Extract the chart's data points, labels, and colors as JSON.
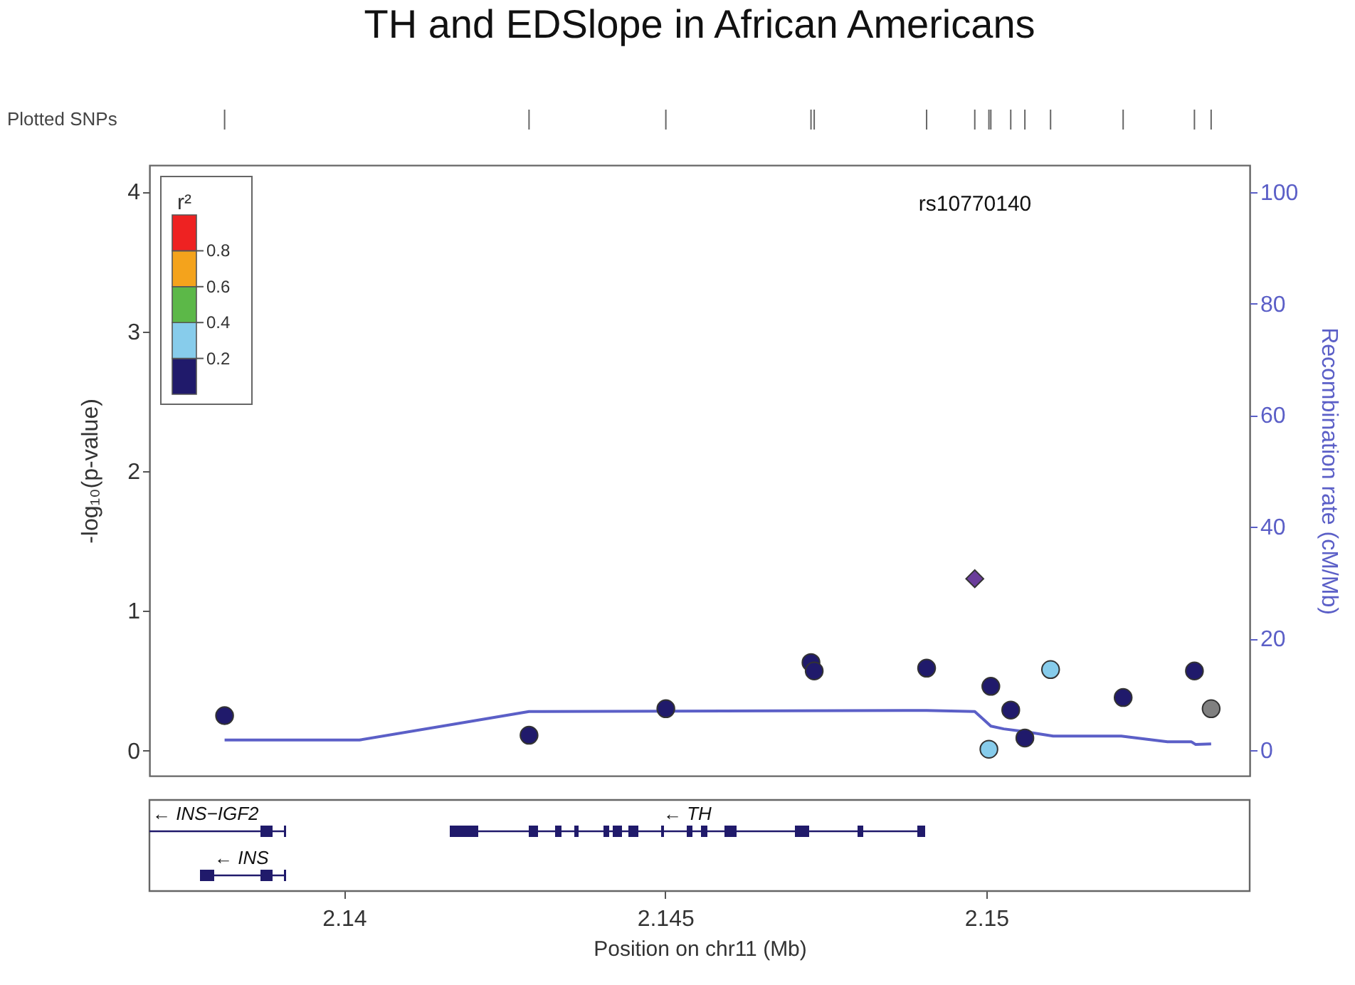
{
  "chart_data": [
    {
      "type": "scatter",
      "title": "TH and EDSlope in African Americans",
      "xlabel": "Position on chr11 (Mb)",
      "ylabel": "-log₁₀(p-value)",
      "y2label": "Recombination rate (cM/Mb)",
      "annotations": [
        "rs10770140",
        "Plotted SNPs"
      ],
      "xlim": [
        2.13697,
        2.1541
      ],
      "xticks": [
        2.14,
        2.145,
        2.15
      ],
      "ylim": [
        -0.18,
        4.19
      ],
      "yticks": [
        0,
        1,
        2,
        3,
        4
      ],
      "y2lim": [
        -4.6,
        104.8
      ],
      "y2ticks": [
        0,
        20,
        40,
        60,
        80,
        100
      ],
      "grid": false,
      "series": [
        {
          "type": "scatter",
          "marker": "circle",
          "color": "#201a6b",
          "x": [
            2.13814,
            2.14288,
            2.14501,
            2.14727,
            2.14732,
            2.14907,
            2.15007,
            2.15038,
            2.1506,
            2.15213,
            2.15324
          ],
          "values": [
            0.25,
            0.11,
            0.3,
            0.63,
            0.57,
            0.59,
            0.46,
            0.29,
            0.09,
            0.38,
            0.57
          ]
        },
        {
          "type": "scatter",
          "marker": "circle",
          "color": "#87cceb",
          "x": [
            2.15004,
            2.151
          ],
          "values": [
            0.01,
            0.58
          ]
        },
        {
          "type": "scatter",
          "marker": "circle",
          "color": "#808080",
          "x": [
            2.1535
          ],
          "values": [
            0.3
          ]
        },
        {
          "type": "scatter",
          "marker": "diamond",
          "color": "#6a3d9a",
          "x": [
            2.14982
          ],
          "values": [
            1.23
          ]
        },
        {
          "type": "line",
          "axis": "y2",
          "color": "#5b5fc7",
          "x": [
            2.13814,
            2.14024,
            2.14288,
            2.14907,
            2.14982,
            2.15007,
            2.15027,
            2.1506,
            2.15104,
            2.1521,
            2.15282,
            2.15319,
            2.15326,
            2.1535
          ],
          "values": [
            1.8,
            1.8,
            6.9,
            7.1,
            6.9,
            4.3,
            3.8,
            3.3,
            2.5,
            2.5,
            1.5,
            1.5,
            1.0,
            1.1
          ]
        }
      ]
    },
    {
      "type": "bar",
      "stacked": true,
      "title": "r²",
      "categories": [
        null
      ],
      "ylim": [
        0,
        1
      ],
      "yticks": [
        0.2,
        0.4,
        0.6,
        0.8
      ],
      "tick_labels": "y",
      "series": [
        {
          "color": "#201a6b",
          "values": [
            0.2
          ]
        },
        {
          "color": "#87cceb",
          "values": [
            0.2
          ]
        },
        {
          "color": "#5cb848",
          "values": [
            0.2
          ]
        },
        {
          "color": "#f4a31c",
          "values": [
            0.2
          ]
        },
        {
          "color": "#ee2222",
          "values": [
            0.2
          ]
        }
      ]
    },
    {
      "type": "other",
      "annotations": [
        "← INS−IGF2",
        "← TH",
        "← INS"
      ]
    }
  ]
}
